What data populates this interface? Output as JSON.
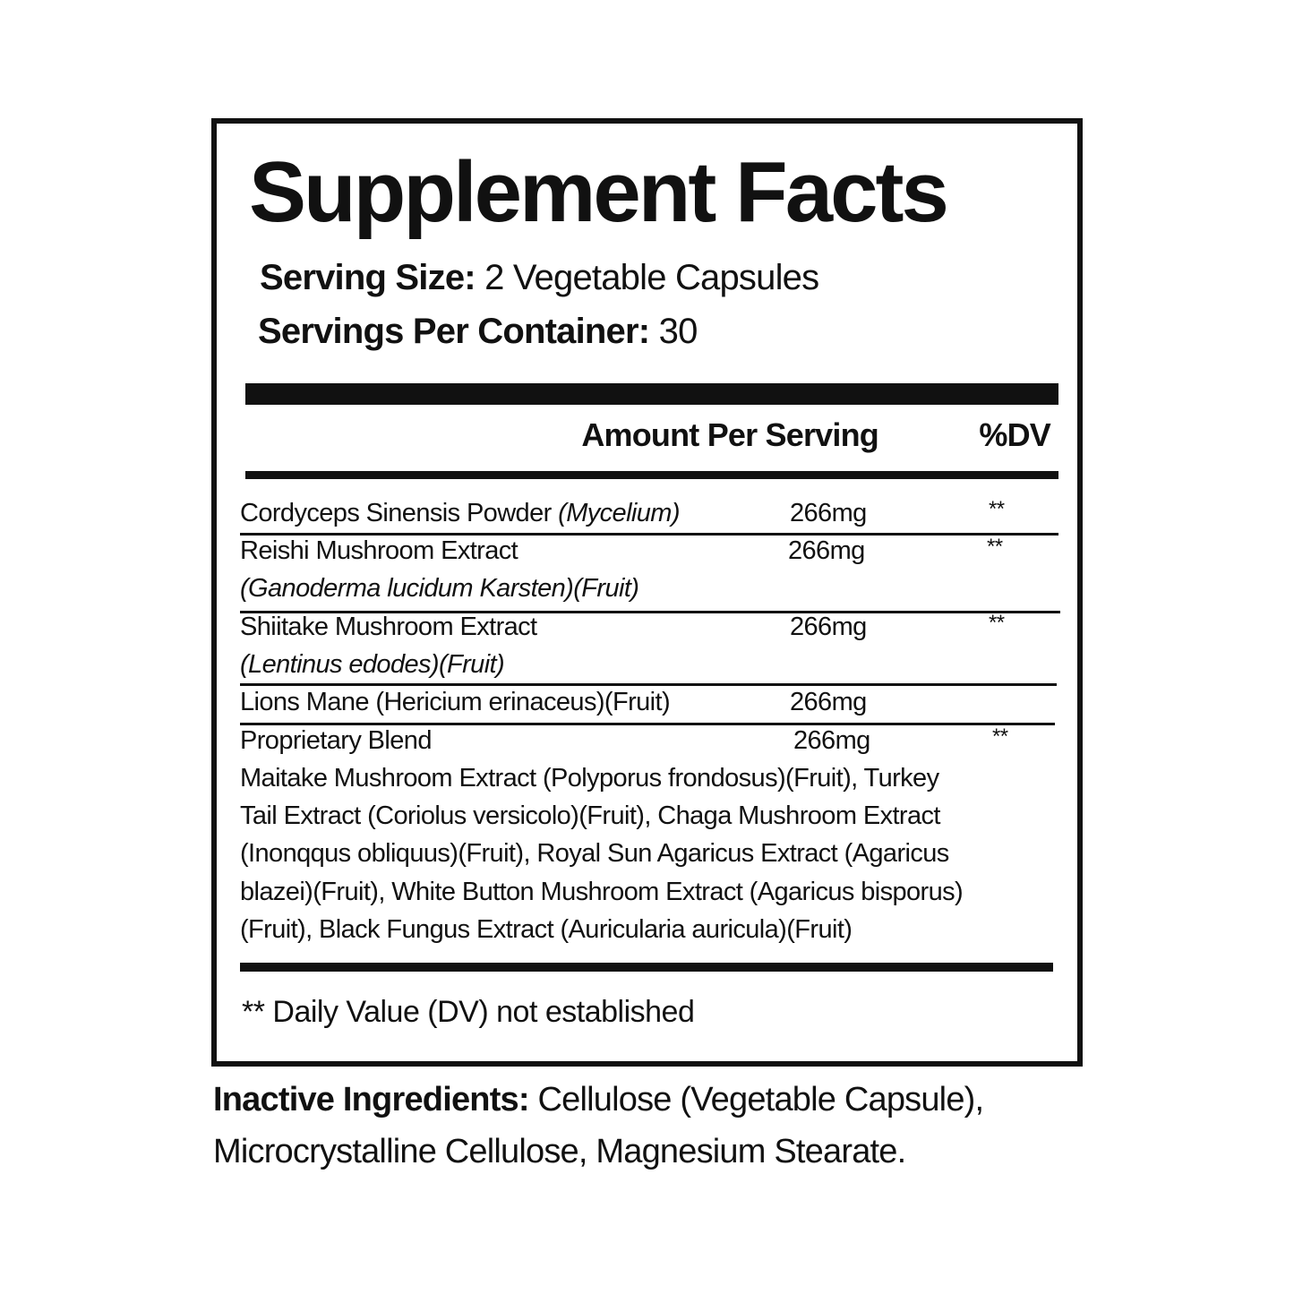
{
  "title": "Supplement Facts",
  "serving_size": {
    "label": "Serving Size:",
    "value": "2 Vegetable Capsules"
  },
  "servings_per_container": {
    "label": "Servings Per Container:",
    "value": "30"
  },
  "table_header": {
    "amount": "Amount Per Serving",
    "dv": "%DV"
  },
  "ingredients": [
    {
      "name": "Cordyceps Sinensis Powder",
      "note": "(Mycelium)",
      "amount": "266mg",
      "dv": "**"
    },
    {
      "name": "Reishi Mushroom Extract",
      "note": "(Ganoderma lucidum Karsten)(Fruit)",
      "amount": "266mg",
      "dv": "**"
    },
    {
      "name": "Shiitake Mushroom Extract",
      "note": "(Lentinus edodes)(Fruit)",
      "amount": "266mg",
      "dv": "**"
    },
    {
      "name": "Lions Mane (Hericium erinaceus)(Fruit)",
      "amount": "266mg",
      "dv": ""
    },
    {
      "name": "Proprietary Blend",
      "amount": "266mg",
      "dv": "**"
    }
  ],
  "blend_lines": [
    "Maitake Mushroom Extract (Polyporus frondosus)(Fruit), Turkey",
    "Tail Extract (Coriolus versicolo)(Fruit), Chaga Mushroom Extract",
    "(Inonqqus obliquus)(Fruit), Royal Sun Agaricus Extract (Agaricus",
    "blazei)(Fruit), White Button Mushroom Extract (Agaricus bisporus)",
    "(Fruit), Black Fungus Extract (Auricularia auricula)(Fruit)"
  ],
  "footnote": "** Daily Value (DV) not established",
  "inactive": {
    "label": "Inactive Ingredients:",
    "line1": "Cellulose (Vegetable Capsule),",
    "line2": "Microcrystalline Cellulose, Magnesium Stearate."
  }
}
